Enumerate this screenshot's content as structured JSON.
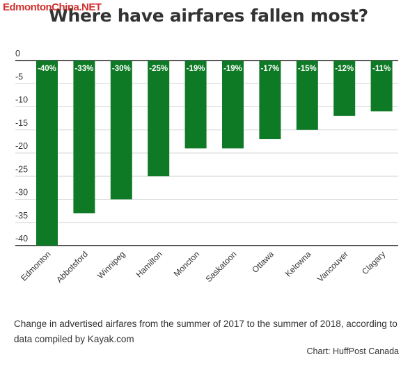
{
  "watermark": "EdmontonChina.NET",
  "chart_data": {
    "type": "bar",
    "title": "Where have airfares fallen most?",
    "categories": [
      "Edmonton",
      "Abbotsford",
      "Winnipeg",
      "Hamilton",
      "Moncton",
      "Saskatoon",
      "Ottawa",
      "Kelowna",
      "Vancouver",
      "Clagary"
    ],
    "values": [
      -40,
      -33,
      -30,
      -25,
      -19,
      -19,
      -17,
      -15,
      -12,
      -11
    ],
    "value_labels": [
      "-40%",
      "-33%",
      "-30%",
      "-25%",
      "-19%",
      "-19%",
      "-17%",
      "-15%",
      "-12%",
      "-11%"
    ],
    "y_ticks": [
      "0",
      "-5",
      "-10",
      "-15",
      "-20",
      "-25",
      "-30",
      "-35",
      "-40"
    ],
    "y_tick_values": [
      0,
      -5,
      -10,
      -15,
      -20,
      -25,
      -30,
      -35,
      -40
    ],
    "ylim": [
      -40,
      0
    ],
    "grid": true,
    "bar_color": "#0f7a26",
    "caption": "Change in advertised airfares from the summer of 2017 to the summer of 2018, according to data compiled by Kayak.com",
    "source": "Chart: HuffPost Canada"
  }
}
